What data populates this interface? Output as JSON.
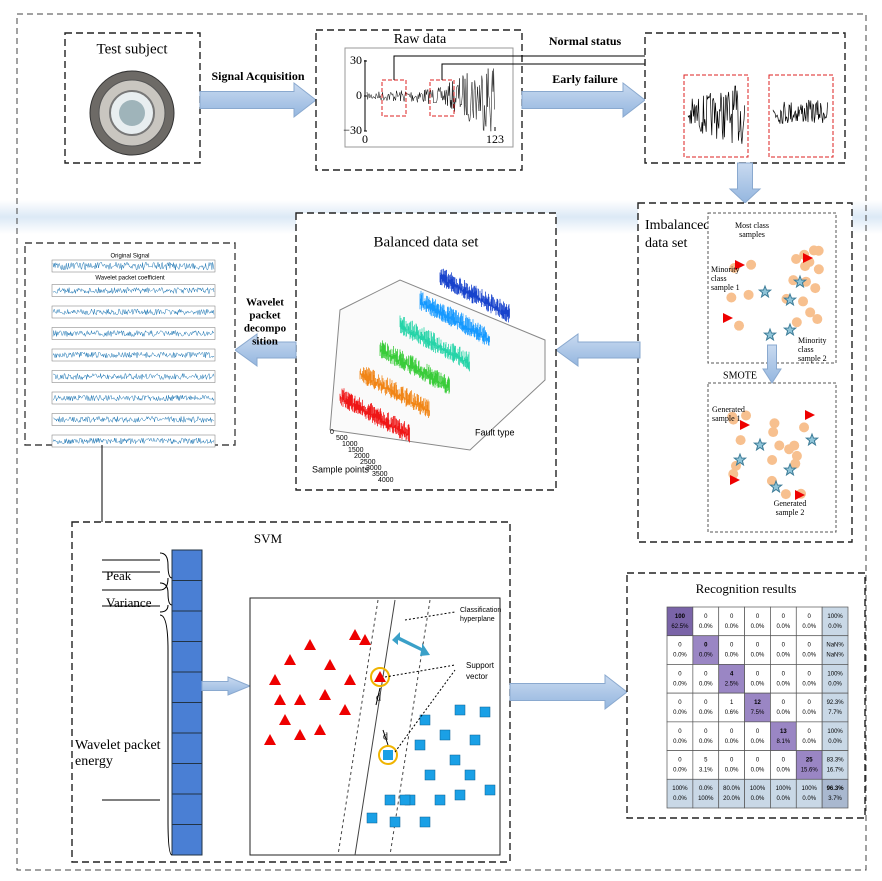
{
  "test_subject": {
    "title": "Test subject"
  },
  "arrows": {
    "signal_acquisition": "Signal Acquisition",
    "early_failure": "Early failure",
    "normal_status": "Normal status",
    "wavelet_decomposition": [
      "Wavelet",
      "packet",
      "decompo",
      "sition"
    ]
  },
  "raw_data": {
    "title": "Raw data",
    "yticks": [
      {
        "value": 30,
        "label": "30"
      },
      0,
      {
        "value": -30,
        "label": "−30"
      }
    ],
    "xticks": [
      0,
      123
    ]
  },
  "imbalanced": {
    "title": [
      "Imbalanced",
      "data set"
    ],
    "most": [
      "Most class",
      "samples"
    ],
    "minority1": [
      "Minority",
      "class",
      "sample 1"
    ],
    "minority2": [
      "Minority",
      "class",
      "sample 2"
    ],
    "smote": "SMOTE",
    "generated1": [
      "Generated",
      "sample 1"
    ],
    "generated2": [
      "Generated",
      "sample 2"
    ]
  },
  "balanced": {
    "title": "Balanced data set",
    "x_label": "Fault type",
    "y_label": "Sample points",
    "yticks": [
      0,
      500,
      1000,
      1500,
      2000,
      2500,
      3000,
      3500,
      4000
    ]
  },
  "wavelet": {
    "title": "Original Signal",
    "subtitle": "Wavelet packet coefficient"
  },
  "svm": {
    "title": "SVM",
    "peak": "Peak",
    "variance": "Variance",
    "energy": [
      "Wavelet packet",
      "energy"
    ],
    "hyperplane": [
      "Classification",
      "hyperplane"
    ],
    "support": [
      "Support",
      "vector"
    ],
    "d": [
      "d",
      "d"
    ]
  },
  "recognition": {
    "title": "Recognition results",
    "rows": [
      [
        [
          "100",
          "62.5%"
        ],
        [
          "0",
          "0.0%"
        ],
        [
          "0",
          "0.0%"
        ],
        [
          "0",
          "0.0%"
        ],
        [
          "0",
          "0.0%"
        ],
        [
          "0",
          "0.0%"
        ],
        [
          "100%",
          "0.0%"
        ]
      ],
      [
        [
          "0",
          "0.0%"
        ],
        [
          "0",
          "0.0%"
        ],
        [
          "0",
          "0.0%"
        ],
        [
          "0",
          "0.0%"
        ],
        [
          "0",
          "0.0%"
        ],
        [
          "0",
          "0.0%"
        ],
        [
          "NaN%",
          "NaN%"
        ]
      ],
      [
        [
          "0",
          "0.0%"
        ],
        [
          "0",
          "0.0%"
        ],
        [
          "4",
          "2.5%"
        ],
        [
          "0",
          "0.0%"
        ],
        [
          "0",
          "0.0%"
        ],
        [
          "0",
          "0.0%"
        ],
        [
          "100%",
          "0.0%"
        ]
      ],
      [
        [
          "0",
          "0.0%"
        ],
        [
          "0",
          "0.0%"
        ],
        [
          "1",
          "0.6%"
        ],
        [
          "12",
          "7.5%"
        ],
        [
          "0",
          "0.0%"
        ],
        [
          "0",
          "0.0%"
        ],
        [
          "92.3%",
          "7.7%"
        ]
      ],
      [
        [
          "0",
          "0.0%"
        ],
        [
          "0",
          "0.0%"
        ],
        [
          "0",
          "0.0%"
        ],
        [
          "0",
          "0.0%"
        ],
        [
          "13",
          "8.1%"
        ],
        [
          "0",
          "0.0%"
        ],
        [
          "100%",
          "0.0%"
        ]
      ],
      [
        [
          "0",
          "0.0%"
        ],
        [
          "5",
          "3.1%"
        ],
        [
          "0",
          "0.0%"
        ],
        [
          "0",
          "0.0%"
        ],
        [
          "0",
          "0.0%"
        ],
        [
          "25",
          "15.6%"
        ],
        [
          "83.3%",
          "16.7%"
        ]
      ],
      [
        [
          "100%",
          "0.0%"
        ],
        [
          "0.0%",
          "100%"
        ],
        [
          "80.0%",
          "20.0%"
        ],
        [
          "100%",
          "0.0%"
        ],
        [
          "100%",
          "0.0%"
        ],
        [
          "100%",
          "0.0%"
        ],
        [
          "96.3%",
          "3.7%"
        ]
      ]
    ]
  }
}
